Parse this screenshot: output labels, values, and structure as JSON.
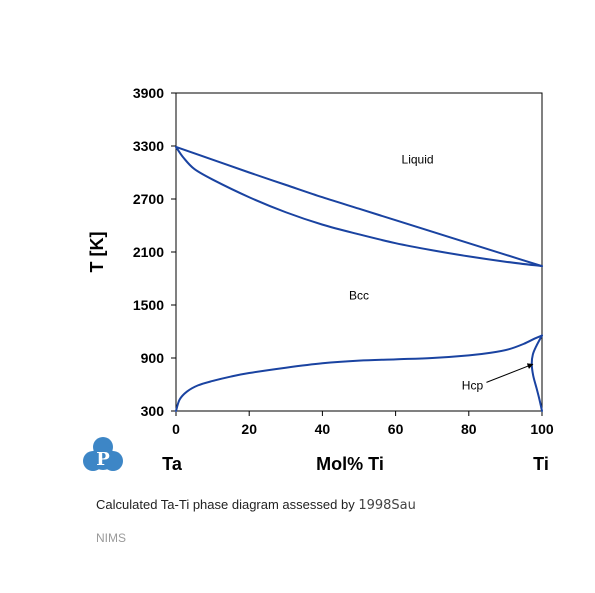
{
  "chart_data": {
    "type": "line",
    "ylabel": "T [K]",
    "xlabel": "Mol% Ti",
    "x_left_element": "Ta",
    "x_right_element": "Ti",
    "xlim": [
      0,
      100
    ],
    "ylim": [
      300,
      3900
    ],
    "x_ticks": [
      "0",
      "20",
      "40",
      "60",
      "80",
      "100"
    ],
    "y_ticks": [
      "300",
      "900",
      "1500",
      "2100",
      "2700",
      "3300",
      "3900"
    ],
    "line_color": "#1a43a1",
    "regions": [
      {
        "label": "Liquid",
        "x": 66,
        "y": 3100
      },
      {
        "label": "Bcc",
        "x": 50,
        "y": 1560
      }
    ],
    "annotations": [
      {
        "label": "Hcp",
        "text_x": 81,
        "text_y": 590,
        "arrow_to_x": 97.5,
        "arrow_to_y": 830
      }
    ],
    "series": [
      {
        "x": [
          0,
          10,
          20,
          30,
          40,
          50,
          60,
          70,
          80,
          90,
          100
        ],
        "y": [
          3290,
          3145,
          3000,
          2860,
          2720,
          2590,
          2460,
          2330,
          2200,
          2070,
          1940
        ]
      },
      {
        "x": [
          0,
          2,
          5,
          10,
          20,
          30,
          40,
          50,
          60,
          70,
          80,
          90,
          100
        ],
        "y": [
          3290,
          3170,
          3040,
          2920,
          2720,
          2550,
          2410,
          2300,
          2200,
          2120,
          2050,
          1990,
          1940
        ]
      },
      {
        "x": [
          0,
          1,
          3,
          6,
          10,
          15,
          20,
          30,
          40,
          50,
          60,
          70,
          80,
          86,
          91,
          95,
          98,
          100
        ],
        "y": [
          300,
          430,
          520,
          590,
          640,
          690,
          730,
          790,
          840,
          870,
          885,
          900,
          930,
          960,
          1000,
          1060,
          1120,
          1155
        ]
      },
      {
        "x": [
          100,
          98.5,
          97.5,
          97.2,
          97.6,
          98.5,
          99.3,
          100
        ],
        "y": [
          1155,
          1040,
          940,
          830,
          700,
          560,
          430,
          300
        ]
      }
    ]
  },
  "caption": {
    "text": "Calculated Ta-Ti phase diagram assessed by",
    "reference": "1998Sau"
  },
  "source": "NIMS",
  "logo": {
    "letter": "P",
    "color": "#3d86c6"
  }
}
